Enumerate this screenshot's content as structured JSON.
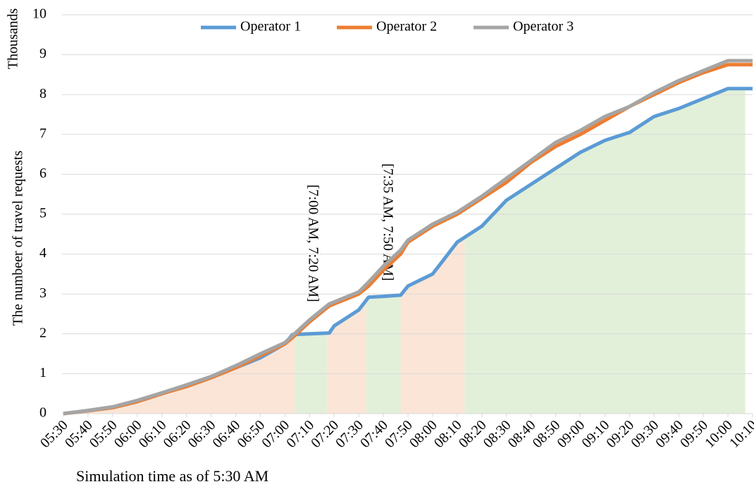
{
  "chart_data": {
    "type": "line",
    "y_axis_label": "The numbeer of travel requests",
    "y_unit_label": "Thousands",
    "x_axis_label": "Simulation time as of 5:30 AM",
    "x": [
      330,
      340,
      350,
      360,
      370,
      380,
      390,
      400,
      410,
      420,
      423,
      430,
      438,
      440,
      450,
      454,
      460,
      467,
      470,
      480,
      490,
      500,
      510,
      520,
      530,
      540,
      550,
      560,
      570,
      580,
      590,
      600,
      610
    ],
    "series": [
      {
        "name": "Operator 1",
        "color": "#5b9bd5",
        "values": [
          0,
          0.07,
          0.15,
          0.3,
          0.5,
          0.68,
          0.9,
          1.15,
          1.4,
          1.75,
          1.98,
          2.0,
          2.02,
          2.2,
          2.6,
          2.92,
          2.94,
          2.97,
          3.2,
          3.5,
          4.3,
          4.7,
          5.35,
          5.75,
          6.15,
          6.55,
          6.85,
          7.05,
          7.45,
          7.65,
          7.9,
          8.15,
          8.15
        ]
      },
      {
        "name": "Operator 2",
        "color": "#ed7d31",
        "values": [
          0,
          0.07,
          0.15,
          0.3,
          0.5,
          0.68,
          0.9,
          1.15,
          1.45,
          1.75,
          1.9,
          2.3,
          2.7,
          2.75,
          3.0,
          3.2,
          3.6,
          4.0,
          4.3,
          4.7,
          5.0,
          5.4,
          5.8,
          6.3,
          6.7,
          7.0,
          7.35,
          7.7,
          8.0,
          8.3,
          8.55,
          8.75,
          8.75
        ]
      },
      {
        "name": "Operator 3",
        "color": "#a5a5a5",
        "values": [
          0,
          0.08,
          0.17,
          0.33,
          0.52,
          0.72,
          0.93,
          1.2,
          1.5,
          1.78,
          1.95,
          2.35,
          2.75,
          2.8,
          3.05,
          3.3,
          3.7,
          4.1,
          4.35,
          4.75,
          5.05,
          5.45,
          5.9,
          6.35,
          6.8,
          7.1,
          7.45,
          7.7,
          8.05,
          8.35,
          8.6,
          8.85,
          8.85
        ]
      }
    ],
    "bands": [
      {
        "from": 330,
        "to": 424,
        "color": "#fbe5d6"
      },
      {
        "from": 424,
        "to": 437,
        "color": "#e2f0d9"
      },
      {
        "from": 437,
        "to": 453,
        "color": "#fbe5d6"
      },
      {
        "from": 453,
        "to": 467,
        "color": "#e2f0d9"
      },
      {
        "from": 467,
        "to": 493,
        "color": "#fbe5d6"
      },
      {
        "from": 493,
        "to": 607,
        "color": "#e2f0d9"
      }
    ],
    "annotations": [
      "[7:00 AM, 7:20 AM]",
      "[7:35 AM, 7:50 AM]"
    ],
    "xlim": [
      330,
      610
    ],
    "xticks": [
      {
        "value": 330,
        "label": "05:30"
      },
      {
        "value": 340,
        "label": "05:40"
      },
      {
        "value": 350,
        "label": "05:50"
      },
      {
        "value": 360,
        "label": "06:00"
      },
      {
        "value": 370,
        "label": "06:10"
      },
      {
        "value": 380,
        "label": "06:20"
      },
      {
        "value": 390,
        "label": "06:30"
      },
      {
        "value": 400,
        "label": "06:40"
      },
      {
        "value": 410,
        "label": "06:50"
      },
      {
        "value": 420,
        "label": "07:00"
      },
      {
        "value": 430,
        "label": "07:10"
      },
      {
        "value": 440,
        "label": "07:20"
      },
      {
        "value": 450,
        "label": "07:30"
      },
      {
        "value": 460,
        "label": "07:40"
      },
      {
        "value": 470,
        "label": "07:50"
      },
      {
        "value": 480,
        "label": "08:00"
      },
      {
        "value": 490,
        "label": "08:10"
      },
      {
        "value": 500,
        "label": "08:20"
      },
      {
        "value": 510,
        "label": "08:30"
      },
      {
        "value": 520,
        "label": "08:40"
      },
      {
        "value": 530,
        "label": "08:50"
      },
      {
        "value": 540,
        "label": "09:00"
      },
      {
        "value": 550,
        "label": "09:10"
      },
      {
        "value": 560,
        "label": "09:20"
      },
      {
        "value": 570,
        "label": "09:30"
      },
      {
        "value": 580,
        "label": "09:40"
      },
      {
        "value": 590,
        "label": "09:50"
      },
      {
        "value": 600,
        "label": "10:00"
      },
      {
        "value": 610,
        "label": "10:10"
      }
    ],
    "ylim": [
      0,
      10
    ],
    "yticks": [
      0,
      1,
      2,
      3,
      4,
      5,
      6,
      7,
      8,
      9,
      10
    ],
    "grid": true,
    "legend": "top"
  }
}
